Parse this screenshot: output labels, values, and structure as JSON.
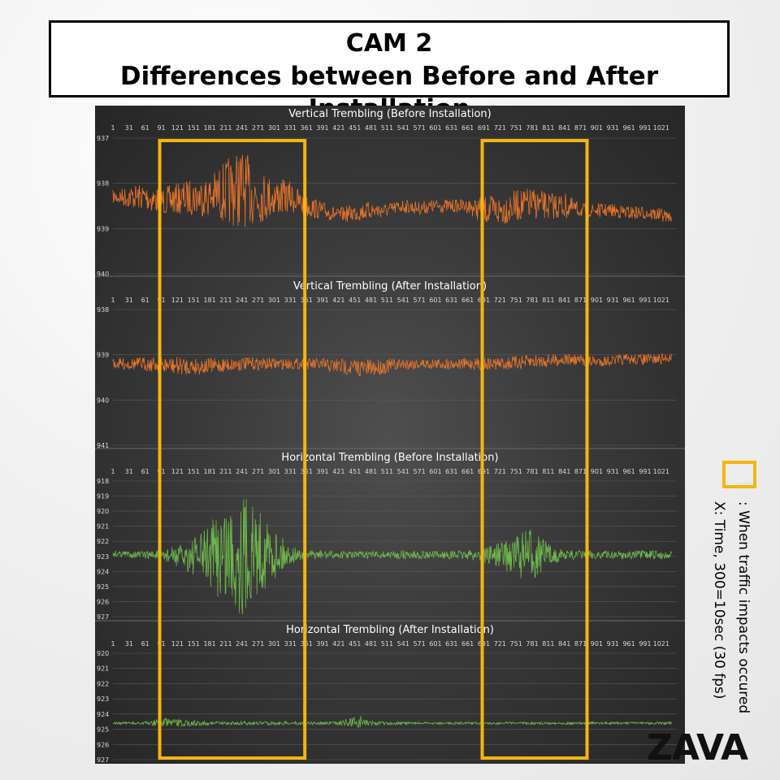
{
  "header": {
    "title_line1": "CAM 2",
    "title_line2": "Differences between Before and After Installation"
  },
  "legend": {
    "box_label": ": When traffic impacts occured",
    "axis_note": "X: Time, 300=10sec (30 fps)"
  },
  "brand": "ZAVA",
  "colors": {
    "highlight": "#f5b50d",
    "vertical_series": "#e8742a",
    "horizontal_series": "#6fb84a",
    "panel_background": "#3a3a3a",
    "gridline": "#5a5a5a"
  },
  "highlight_windows": [
    {
      "label": "When traffic impacts occured",
      "x_start": 88,
      "x_end": 358
    },
    {
      "label": "When traffic impacts occured",
      "x_start": 688,
      "x_end": 883
    }
  ],
  "chart_data": [
    {
      "type": "line",
      "title": "Vertical Trembling (Before Installation)",
      "x_ticks": [
        1,
        31,
        61,
        91,
        121,
        151,
        181,
        211,
        241,
        271,
        301,
        331,
        361,
        391,
        421,
        451,
        481,
        511,
        541,
        571,
        601,
        631,
        661,
        691,
        721,
        751,
        781,
        811,
        841,
        871,
        901,
        931,
        961,
        991,
        1021
      ],
      "y_ticks": [
        937,
        938,
        939,
        940
      ],
      "ylim": [
        940,
        937
      ],
      "xlim": [
        1,
        1050
      ],
      "color": "series_vertical",
      "series": [
        {
          "x": [
            1,
            30,
            60,
            90,
            120,
            150,
            180,
            210,
            240,
            270,
            300,
            330,
            360,
            390,
            420,
            450,
            480,
            510,
            540,
            570,
            600,
            630,
            660,
            690,
            720,
            750,
            780,
            810,
            840,
            870,
            900,
            930,
            960,
            990,
            1020,
            1040
          ],
          "values": [
            938.3,
            938.3,
            938.3,
            938.4,
            938.35,
            938.3,
            938.3,
            938.2,
            938.1,
            938.3,
            938.3,
            938.3,
            938.5,
            938.6,
            938.7,
            938.65,
            938.6,
            938.6,
            938.5,
            938.55,
            938.5,
            938.5,
            938.5,
            938.6,
            938.6,
            938.5,
            938.45,
            938.5,
            938.5,
            938.6,
            938.6,
            938.6,
            938.65,
            938.65,
            938.7,
            938.75
          ],
          "amplitude": [
            0.15,
            0.25,
            0.3,
            0.3,
            0.35,
            0.4,
            0.45,
            0.7,
            0.9,
            0.6,
            0.45,
            0.35,
            0.25,
            0.2,
            0.15,
            0.2,
            0.2,
            0.15,
            0.15,
            0.15,
            0.15,
            0.15,
            0.15,
            0.3,
            0.35,
            0.35,
            0.35,
            0.3,
            0.3,
            0.15,
            0.15,
            0.15,
            0.15,
            0.15,
            0.15,
            0.1
          ]
        }
      ]
    },
    {
      "type": "line",
      "title": "Vertical Trembling (After Installation)",
      "x_ticks": [
        1,
        31,
        61,
        91,
        121,
        151,
        181,
        211,
        241,
        271,
        301,
        331,
        361,
        391,
        421,
        451,
        481,
        511,
        541,
        571,
        601,
        631,
        661,
        691,
        721,
        751,
        781,
        811,
        841,
        871,
        901,
        931,
        961,
        991,
        1021
      ],
      "y_ticks": [
        938,
        939,
        940,
        941
      ],
      "ylim": [
        941,
        938
      ],
      "xlim": [
        1,
        1050
      ],
      "color": "series_vertical",
      "series": [
        {
          "x": [
            1,
            60,
            120,
            180,
            240,
            300,
            360,
            420,
            480,
            540,
            600,
            660,
            720,
            780,
            840,
            900,
            960,
            1020,
            1040
          ],
          "values": [
            939.2,
            939.2,
            939.25,
            939.25,
            939.2,
            939.2,
            939.2,
            939.25,
            939.3,
            939.2,
            939.2,
            939.2,
            939.2,
            939.15,
            939.1,
            939.15,
            939.1,
            939.1,
            939.05
          ],
          "amplitude": [
            0.12,
            0.15,
            0.2,
            0.18,
            0.15,
            0.13,
            0.12,
            0.18,
            0.2,
            0.13,
            0.12,
            0.12,
            0.15,
            0.15,
            0.13,
            0.12,
            0.12,
            0.12,
            0.1
          ]
        }
      ]
    },
    {
      "type": "line",
      "title": "Horizontal Trembling (Before Installation)",
      "x_ticks": [
        1,
        31,
        61,
        91,
        121,
        151,
        181,
        211,
        241,
        271,
        301,
        331,
        361,
        391,
        421,
        451,
        481,
        511,
        541,
        571,
        601,
        631,
        661,
        691,
        721,
        751,
        781,
        811,
        841,
        871,
        901,
        931,
        961,
        991,
        1021
      ],
      "y_ticks": [
        918,
        919,
        920,
        921,
        922,
        923,
        924,
        925,
        926,
        927
      ],
      "ylim": [
        927,
        918
      ],
      "xlim": [
        1,
        1050
      ],
      "color": "series_horizontal",
      "series": [
        {
          "x": [
            1,
            60,
            90,
            120,
            150,
            180,
            210,
            240,
            270,
            300,
            330,
            360,
            390,
            420,
            480,
            540,
            600,
            660,
            720,
            750,
            780,
            810,
            840,
            900,
            960,
            1020,
            1040
          ],
          "values": [
            922.8,
            922.9,
            922.9,
            923.0,
            923.0,
            922.9,
            922.8,
            922.8,
            922.7,
            922.8,
            922.9,
            922.9,
            922.9,
            922.9,
            922.9,
            922.9,
            922.9,
            922.9,
            922.9,
            922.9,
            922.9,
            922.9,
            922.9,
            922.9,
            922.9,
            922.9,
            922.9
          ],
          "amplitude": [
            0.2,
            0.25,
            0.4,
            0.7,
            1.2,
            2.0,
            3.6,
            4.2,
            3.0,
            1.8,
            0.6,
            0.3,
            0.3,
            0.25,
            0.25,
            0.3,
            0.25,
            0.3,
            0.8,
            1.5,
            1.8,
            0.8,
            0.3,
            0.3,
            0.3,
            0.3,
            0.25
          ]
        }
      ]
    },
    {
      "type": "line",
      "title": "Horizontal Trembling (After Installation)",
      "x_ticks": [
        1,
        31,
        61,
        91,
        121,
        151,
        181,
        211,
        241,
        271,
        301,
        331,
        361,
        391,
        421,
        451,
        481,
        511,
        541,
        571,
        601,
        631,
        661,
        691,
        721,
        751,
        781,
        811,
        841,
        871,
        901,
        931,
        961,
        991,
        1021
      ],
      "y_ticks": [
        920,
        921,
        922,
        923,
        924,
        925,
        926,
        927
      ],
      "ylim": [
        927,
        920
      ],
      "xlim": [
        1,
        1050
      ],
      "color": "series_horizontal",
      "series": [
        {
          "x": [
            1,
            60,
            90,
            120,
            180,
            240,
            300,
            360,
            420,
            460,
            480,
            540,
            600,
            660,
            720,
            780,
            840,
            900,
            960,
            1020,
            1040
          ],
          "values": [
            924.6,
            924.6,
            924.55,
            924.6,
            924.6,
            924.6,
            924.6,
            924.6,
            924.6,
            924.5,
            924.6,
            924.6,
            924.6,
            924.6,
            924.6,
            924.6,
            924.6,
            924.6,
            924.6,
            924.6,
            924.6
          ],
          "amplitude": [
            0.08,
            0.1,
            0.3,
            0.25,
            0.12,
            0.12,
            0.12,
            0.1,
            0.12,
            0.45,
            0.15,
            0.08,
            0.08,
            0.08,
            0.08,
            0.08,
            0.08,
            0.08,
            0.08,
            0.08,
            0.08
          ]
        }
      ]
    }
  ]
}
